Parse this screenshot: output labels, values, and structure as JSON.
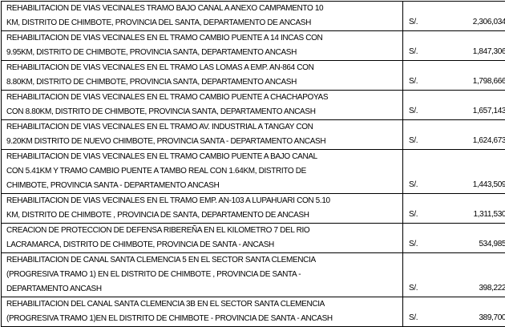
{
  "table": {
    "currency_label": "S/.",
    "rows": [
      {
        "description": "REHABILITACION DE VIAS VECINALES TRAMO BAJO CANAL A ANEXO CAMPAMENTO 10\nKM, DISTRITO DE CHIMBOTE, PROVINCIA DEL SANTA, DEPARTAMENTO DE ANCASH",
        "amount": "2,306,034.00"
      },
      {
        "description": "REHABILITACION DE VIAS VECINALES EN EL TRAMO CAMBIO PUENTE A 14 INCAS CON\n9.95KM, DISTRITO DE CHIMBOTE, PROVINCIA SANTA, DEPARTAMENTO ANCASH",
        "amount": "1,847,306.00"
      },
      {
        "description": "REHABILITACION DE VIAS VECINALES EN EL TRAMO LAS LOMAS A EMP. AN-864 CON\n8.80KM, DISTRITO DE CHIMBOTE, PROVINCIA SANTA, DEPARTAMENTO ANCASH",
        "amount": "1,798,666.00"
      },
      {
        "description": "REHABILITACION DE VIAS VECINALES EN EL TRAMO CAMBIO PUENTE A CHACHAPOYAS\nCON 8.80KM, DISTRITO DE CHIMBOTE, PROVINCIA SANTA, DEPARTAMENTO ANCASH",
        "amount": "1,657,143.00"
      },
      {
        "description": "REHABILITACION DE VIAS VECINALES EN EL TRAMO AV. INDUSTRIAL A TANGAY CON\n9.20KM DISTRITO DE NUEVO CHIMBOTE, PROVINCIA SANTA - DEPARTAMENTO ANCASH",
        "amount": "1,624,673.00"
      },
      {
        "description": "REHABILITACION DE VIAS VECINALES EN EL TRAMO CAMBIO PUENTE A BAJO CANAL\nCON 5.41KM Y TRAMO CAMBIO PUENTE A TAMBO REAL CON 1.64KM, DISTRITO DE\nCHIMBOTE, PROVINCIA SANTA - DEPARTAMENTO ANCASH",
        "amount": "1,443,509.00"
      },
      {
        "description": "REHABILITACION DE VIAS VECINALES EN EL TRAMO EMP. AN-103 A LUPAHUARI CON 5.10\nKM, DISTRITO DE CHIMBOTE , PROVINCIA DE SANTA, DEPARTAMENTO DE ANCASH",
        "amount": "1,311,530.00"
      },
      {
        "description": "CREACION DE PROTECCION DE DEFENSA RIBEREÑA EN EL KILOMETRO 7 DEL RIO\nLACRAMARCA, DISTRITO DE CHIMBOTE, PROVINCIA DE SANTA - ANCASH",
        "amount": "534,985.00"
      },
      {
        "description": "REHABILITACION DE CANAL SANTA CLEMENCIA 5 EN EL SECTOR SANTA CLEMENCIA\n(PROGRESIVA TRAMO 1) EN EL DISTRITO DE CHIMBOTE , PROVINCIA DE SANTA -\nDEPARTAMENTO ANCASH",
        "amount": "398,222.00"
      },
      {
        "description": "REHABILITACION DEL CANAL SANTA CLEMENCIA 3B EN EL SECTOR SANTA CLEMENCIA\n(PROGRESIVA TRAMO 1)EN EL DISTRITO DE CHIMBOTE - PROVINCIA DE SANTA - ANCASH",
        "amount": "389,700.00"
      }
    ]
  }
}
